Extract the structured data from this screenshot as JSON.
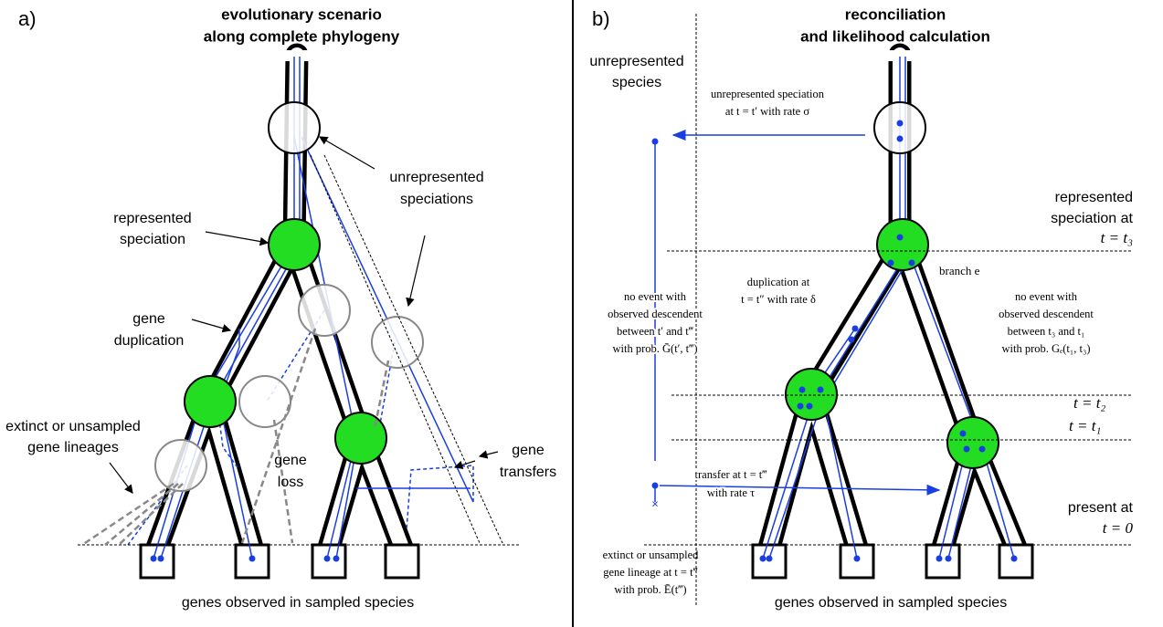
{
  "panel_a": {
    "label": "a)",
    "title": [
      "evolutionary scenario",
      "along complete phylogeny"
    ],
    "unrepresented_speciations": [
      "unrepresented",
      "speciations"
    ],
    "represented_speciation": [
      "represented",
      "speciation"
    ],
    "gene_duplication": [
      "gene",
      "duplication"
    ],
    "extinct_lineages": [
      "extinct or unsampled",
      "gene lineages"
    ],
    "gene_loss": [
      "gene",
      "loss"
    ],
    "gene_transfers": [
      "gene",
      "transfers"
    ],
    "footer": "genes observed in sampled species"
  },
  "panel_b": {
    "label": "b)",
    "title": [
      "reconciliation",
      "and likelihood calculation"
    ],
    "unrepresented_species": [
      "unrepresented",
      "species"
    ],
    "unrepresented_speciation": [
      "unrepresented speciation",
      "at t = t′ with rate σ"
    ],
    "represented_speciation": [
      "represented",
      "speciation at",
      "t = t₃"
    ],
    "branch": "branch e",
    "duplication": [
      "duplication at",
      "t = t″ with rate δ"
    ],
    "no_event_right": [
      "no event with",
      "observed descendent",
      "between t₃ and t₁",
      "with prob. Gₑ(t₁, t₃)"
    ],
    "no_event_left": [
      "no event with",
      "observed descendent",
      "between t′ and t‴",
      "with prob. Ḡ(t′, t‴)"
    ],
    "t2": "t = t₂",
    "t1": "t = t₁",
    "transfer": [
      "transfer at t = t‴",
      "with rate τ"
    ],
    "present": [
      "present at",
      "t = 0"
    ],
    "extinct": [
      "extinct or unsampled",
      "gene lineage at t = t‴",
      "with prob. Ē(t‴)"
    ],
    "footer": "genes observed in sampled species"
  }
}
